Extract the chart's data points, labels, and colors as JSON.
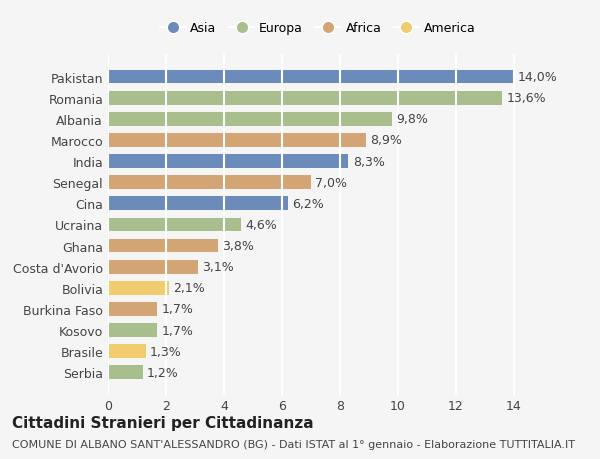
{
  "countries": [
    "Pakistan",
    "Romania",
    "Albania",
    "Marocco",
    "India",
    "Senegal",
    "Cina",
    "Ucraina",
    "Ghana",
    "Costa d'Avorio",
    "Bolivia",
    "Burkina Faso",
    "Kosovo",
    "Brasile",
    "Serbia"
  ],
  "values": [
    14.0,
    13.6,
    9.8,
    8.9,
    8.3,
    7.0,
    6.2,
    4.6,
    3.8,
    3.1,
    2.1,
    1.7,
    1.7,
    1.3,
    1.2
  ],
  "continents": [
    "Asia",
    "Europa",
    "Europa",
    "Africa",
    "Asia",
    "Africa",
    "Asia",
    "Europa",
    "Africa",
    "Africa",
    "America",
    "Africa",
    "Europa",
    "America",
    "Europa"
  ],
  "colors": {
    "Asia": "#6b8cba",
    "Europa": "#a8be8c",
    "Africa": "#d4a574",
    "America": "#f0cc6e"
  },
  "legend_order": [
    "Asia",
    "Europa",
    "Africa",
    "America"
  ],
  "title": "Cittadini Stranieri per Cittadinanza",
  "subtitle": "COMUNE DI ALBANO SANT'ALESSANDRO (BG) - Dati ISTAT al 1° gennaio - Elaborazione TUTTITALIA.IT",
  "xlim": [
    0,
    14
  ],
  "xticks": [
    0,
    2,
    4,
    6,
    8,
    10,
    12,
    14
  ],
  "background_color": "#f5f5f5",
  "grid_color": "#ffffff",
  "bar_height": 0.65,
  "label_fontsize": 9,
  "title_fontsize": 11,
  "subtitle_fontsize": 8
}
